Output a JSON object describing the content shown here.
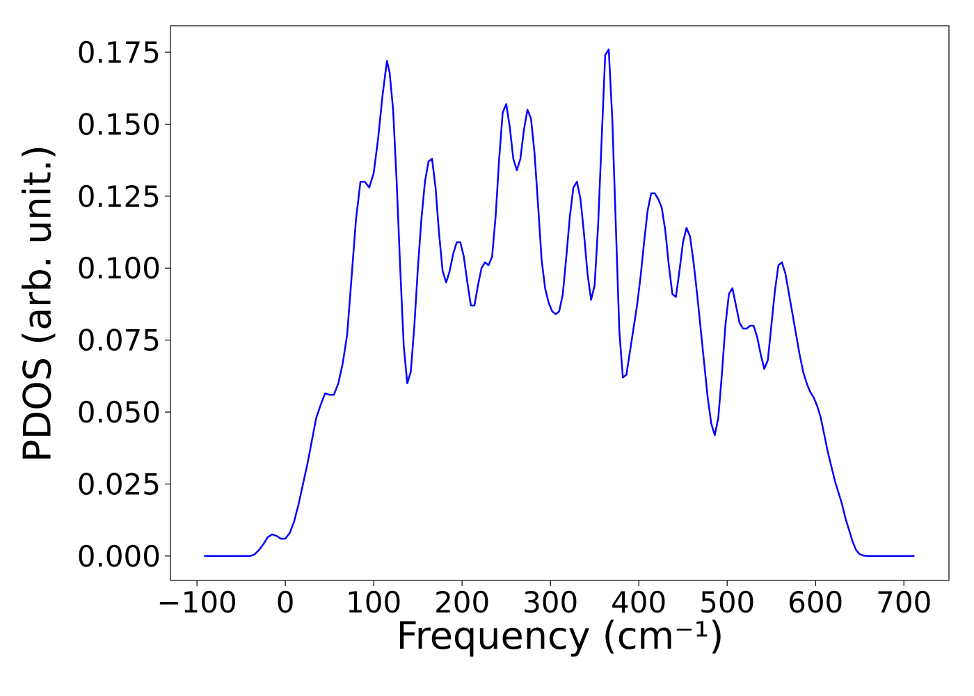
{
  "chart_data": {
    "type": "line",
    "xlabel": "Frequency (cm⁻¹)",
    "ylabel": "PDOS (arb. unit.)",
    "x": [
      -92,
      -40,
      -35,
      -30,
      -25,
      -20,
      -15,
      -10,
      -5,
      0,
      5,
      10,
      15,
      20,
      25,
      30,
      35,
      40,
      45,
      50,
      55,
      60,
      65,
      70,
      75,
      80,
      85,
      90,
      95,
      100,
      105,
      110,
      115,
      118,
      122,
      126,
      130,
      134,
      138,
      142,
      146,
      150,
      154,
      158,
      162,
      166,
      170,
      174,
      178,
      182,
      186,
      190,
      194,
      198,
      202,
      206,
      210,
      214,
      218,
      222,
      226,
      230,
      234,
      238,
      242,
      246,
      250,
      254,
      258,
      262,
      266,
      270,
      274,
      278,
      282,
      286,
      290,
      294,
      298,
      302,
      306,
      310,
      314,
      318,
      322,
      326,
      330,
      334,
      338,
      342,
      346,
      350,
      354,
      358,
      362,
      366,
      370,
      374,
      378,
      382,
      386,
      390,
      394,
      398,
      402,
      406,
      410,
      414,
      418,
      422,
      426,
      430,
      434,
      438,
      442,
      446,
      450,
      454,
      458,
      462,
      466,
      470,
      474,
      478,
      482,
      486,
      490,
      494,
      498,
      502,
      506,
      510,
      514,
      518,
      522,
      526,
      530,
      534,
      538,
      542,
      546,
      550,
      554,
      558,
      562,
      566,
      570,
      574,
      578,
      582,
      586,
      590,
      594,
      598,
      602,
      606,
      610,
      614,
      618,
      622,
      626,
      630,
      634,
      638,
      642,
      646,
      650,
      655,
      660,
      700,
      712
    ],
    "series": [
      {
        "name": "PDOS",
        "color": "#0000ff",
        "values": [
          0,
          0,
          0.0005,
          0.002,
          0.004,
          0.0065,
          0.0075,
          0.007,
          0.006,
          0.006,
          0.008,
          0.012,
          0.018,
          0.025,
          0.032,
          0.04,
          0.048,
          0.0525,
          0.0565,
          0.056,
          0.056,
          0.06,
          0.067,
          0.077,
          0.097,
          0.117,
          0.13,
          0.13,
          0.128,
          0.133,
          0.145,
          0.16,
          0.172,
          0.168,
          0.155,
          0.13,
          0.1,
          0.073,
          0.06,
          0.064,
          0.08,
          0.1,
          0.117,
          0.13,
          0.137,
          0.138,
          0.128,
          0.112,
          0.099,
          0.095,
          0.099,
          0.105,
          0.109,
          0.109,
          0.104,
          0.095,
          0.087,
          0.087,
          0.094,
          0.1,
          0.102,
          0.101,
          0.104,
          0.118,
          0.138,
          0.154,
          0.157,
          0.149,
          0.138,
          0.134,
          0.138,
          0.148,
          0.155,
          0.152,
          0.14,
          0.122,
          0.103,
          0.093,
          0.088,
          0.085,
          0.084,
          0.085,
          0.091,
          0.104,
          0.118,
          0.128,
          0.13,
          0.124,
          0.112,
          0.098,
          0.089,
          0.094,
          0.115,
          0.145,
          0.174,
          0.176,
          0.152,
          0.115,
          0.078,
          0.062,
          0.063,
          0.071,
          0.079,
          0.087,
          0.097,
          0.109,
          0.12,
          0.126,
          0.126,
          0.124,
          0.121,
          0.113,
          0.101,
          0.091,
          0.09,
          0.099,
          0.109,
          0.114,
          0.111,
          0.102,
          0.091,
          0.079,
          0.067,
          0.055,
          0.046,
          0.042,
          0.048,
          0.063,
          0.08,
          0.091,
          0.093,
          0.087,
          0.081,
          0.079,
          0.079,
          0.08,
          0.08,
          0.076,
          0.07,
          0.065,
          0.068,
          0.08,
          0.092,
          0.101,
          0.102,
          0.098,
          0.091,
          0.084,
          0.077,
          0.07,
          0.064,
          0.06,
          0.057,
          0.055,
          0.052,
          0.048,
          0.042,
          0.036,
          0.031,
          0.026,
          0.022,
          0.018,
          0.013,
          0.009,
          0.005,
          0.002,
          0.0006,
          0.0001,
          0,
          0,
          0
        ]
      }
    ],
    "xlim": [
      -130,
      751
    ],
    "ylim": [
      -0.0085,
      0.1842
    ],
    "xticks": [
      {
        "value": -100,
        "label": "−100"
      },
      0,
      100,
      200,
      300,
      400,
      500,
      600,
      700
    ],
    "yticks": [
      {
        "value": 0,
        "label": "0.000"
      },
      {
        "value": 0.025,
        "label": "0.025"
      },
      {
        "value": 0.05,
        "label": "0.050"
      },
      {
        "value": 0.075,
        "label": "0.075"
      },
      {
        "value": 0.1,
        "label": "0.100"
      },
      {
        "value": 0.125,
        "label": "0.125"
      },
      {
        "value": 0.15,
        "label": "0.150"
      },
      {
        "value": 0.175,
        "label": "0.175"
      }
    ]
  }
}
